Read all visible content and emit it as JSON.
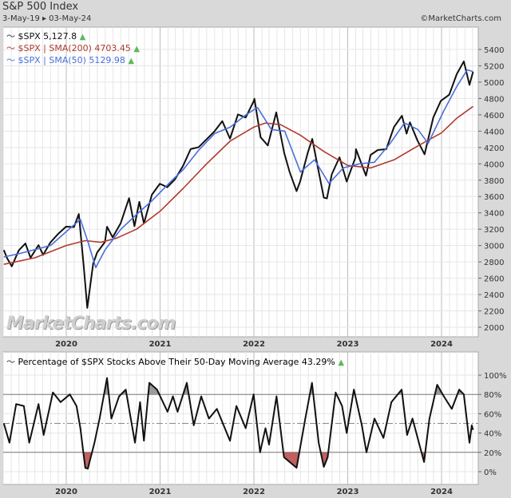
{
  "header": {
    "title": "S&P 500 Index",
    "date_range": "3-May-19 ▸ 03-May-24",
    "credit": "©MarketCharts.com"
  },
  "watermark": "MarketCharts.com",
  "colors": {
    "price": "#111111",
    "sma200": "#b03a2e",
    "sma50": "#4a6fdc",
    "up_arrow": "#5cb85c",
    "overbought_fill": "#9a9a9a",
    "oversold_fill": "#c06060"
  },
  "chart_data": [
    {
      "type": "line",
      "title": "",
      "legend": [
        {
          "label": "$SPX 5,127.8",
          "color": "#111111"
        },
        {
          "label": "$SPX | SMA(200) 4703.45",
          "color": "#b03a2e"
        },
        {
          "label": "$SPX | SMA(50) 5129.98",
          "color": "#4a6fdc"
        }
      ],
      "legend_position": "top-left",
      "x_ticks": [
        "2020",
        "2021",
        "2022",
        "2023",
        "2024"
      ],
      "y_ticks": [
        "2000",
        "2200",
        "2400",
        "2600",
        "2800",
        "3000",
        "3200",
        "3400",
        "3600",
        "3800",
        "4000",
        "4200",
        "4400",
        "4600",
        "4800",
        "5000",
        "5200",
        "5400"
      ],
      "ylim": [
        2000,
        5400
      ],
      "grid": true,
      "series": [
        {
          "name": "$SPX",
          "points": [
            [
              "2019-05-03",
              2945
            ],
            [
              "2019-05-15",
              2850
            ],
            [
              "2019-06-03",
              2745
            ],
            [
              "2019-06-30",
              2940
            ],
            [
              "2019-07-26",
              3025
            ],
            [
              "2019-08-15",
              2850
            ],
            [
              "2019-09-15",
              3005
            ],
            [
              "2019-10-03",
              2885
            ],
            [
              "2019-10-31",
              3037
            ],
            [
              "2019-11-30",
              3141
            ],
            [
              "2019-12-31",
              3231
            ],
            [
              "2020-01-31",
              3226
            ],
            [
              "2020-02-19",
              3386
            ],
            [
              "2020-03-09",
              2750
            ],
            [
              "2020-03-23",
              2237
            ],
            [
              "2020-04-15",
              2780
            ],
            [
              "2020-04-30",
              2912
            ],
            [
              "2020-05-31",
              3044
            ],
            [
              "2020-06-08",
              3230
            ],
            [
              "2020-06-30",
              3100
            ],
            [
              "2020-07-31",
              3271
            ],
            [
              "2020-09-02",
              3580
            ],
            [
              "2020-09-23",
              3237
            ],
            [
              "2020-10-12",
              3535
            ],
            [
              "2020-10-30",
              3270
            ],
            [
              "2020-11-30",
              3622
            ],
            [
              "2020-12-31",
              3756
            ],
            [
              "2021-01-29",
              3714
            ],
            [
              "2021-02-28",
              3811
            ],
            [
              "2021-03-31",
              3973
            ],
            [
              "2021-04-30",
              4181
            ],
            [
              "2021-05-31",
              4204
            ],
            [
              "2021-06-30",
              4298
            ],
            [
              "2021-07-31",
              4395
            ],
            [
              "2021-08-31",
              4523
            ],
            [
              "2021-09-30",
              4308
            ],
            [
              "2021-10-31",
              4605
            ],
            [
              "2021-11-30",
              4567
            ],
            [
              "2021-12-31",
              4766
            ],
            [
              "2022-01-03",
              4796
            ],
            [
              "2022-01-27",
              4326
            ],
            [
              "2022-02-24",
              4225
            ],
            [
              "2022-03-29",
              4630
            ],
            [
              "2022-04-29",
              4132
            ],
            [
              "2022-05-20",
              3900
            ],
            [
              "2022-06-16",
              3666
            ],
            [
              "2022-06-30",
              3785
            ],
            [
              "2022-07-29",
              4130
            ],
            [
              "2022-08-16",
              4305
            ],
            [
              "2022-09-30",
              3586
            ],
            [
              "2022-10-12",
              3577
            ],
            [
              "2022-10-31",
              3872
            ],
            [
              "2022-11-30",
              4080
            ],
            [
              "2022-12-28",
              3783
            ],
            [
              "2023-01-31",
              4077
            ],
            [
              "2023-02-02",
              4180
            ],
            [
              "2023-03-13",
              3855
            ],
            [
              "2023-03-31",
              4109
            ],
            [
              "2023-04-28",
              4169
            ],
            [
              "2023-05-31",
              4180
            ],
            [
              "2023-06-30",
              4450
            ],
            [
              "2023-07-31",
              4589
            ],
            [
              "2023-08-18",
              4370
            ],
            [
              "2023-08-31",
              4508
            ],
            [
              "2023-09-29",
              4288
            ],
            [
              "2023-10-27",
              4117
            ],
            [
              "2023-11-30",
              4568
            ],
            [
              "2023-12-29",
              4770
            ],
            [
              "2024-01-31",
              4846
            ],
            [
              "2024-02-29",
              5096
            ],
            [
              "2024-03-28",
              5254
            ],
            [
              "2024-04-19",
              4967
            ],
            [
              "2024-05-03",
              5128
            ]
          ]
        },
        {
          "name": "$SPX | SMA(200)",
          "points": [
            [
              "2019-05-03",
              2770
            ],
            [
              "2019-09-01",
              2850
            ],
            [
              "2020-01-01",
              3000
            ],
            [
              "2020-03-15",
              3060
            ],
            [
              "2020-05-15",
              3040
            ],
            [
              "2020-07-15",
              3090
            ],
            [
              "2020-10-01",
              3200
            ],
            [
              "2021-01-01",
              3420
            ],
            [
              "2021-04-01",
              3700
            ],
            [
              "2021-07-01",
              4000
            ],
            [
              "2021-10-01",
              4280
            ],
            [
              "2022-01-01",
              4450
            ],
            [
              "2022-02-15",
              4500
            ],
            [
              "2022-04-15",
              4480
            ],
            [
              "2022-07-01",
              4350
            ],
            [
              "2022-10-01",
              4150
            ],
            [
              "2023-01-01",
              3980
            ],
            [
              "2023-04-01",
              3950
            ],
            [
              "2023-07-01",
              4050
            ],
            [
              "2023-10-01",
              4220
            ],
            [
              "2024-01-01",
              4380
            ],
            [
              "2024-03-01",
              4560
            ],
            [
              "2024-05-03",
              4703.45
            ]
          ]
        },
        {
          "name": "$SPX | SMA(50)",
          "points": [
            [
              "2019-05-03",
              2860
            ],
            [
              "2019-07-01",
              2900
            ],
            [
              "2019-09-01",
              2950
            ],
            [
              "2019-11-01",
              3000
            ],
            [
              "2020-01-01",
              3170
            ],
            [
              "2020-02-25",
              3320
            ],
            [
              "2020-03-25",
              3050
            ],
            [
              "2020-04-25",
              2730
            ],
            [
              "2020-06-01",
              2950
            ],
            [
              "2020-08-01",
              3200
            ],
            [
              "2020-10-01",
              3380
            ],
            [
              "2020-12-01",
              3550
            ],
            [
              "2021-02-01",
              3750
            ],
            [
              "2021-04-01",
              3930
            ],
            [
              "2021-06-01",
              4170
            ],
            [
              "2021-08-01",
              4370
            ],
            [
              "2021-10-01",
              4450
            ],
            [
              "2021-12-01",
              4600
            ],
            [
              "2022-01-15",
              4690
            ],
            [
              "2022-03-10",
              4420
            ],
            [
              "2022-05-01",
              4400
            ],
            [
              "2022-07-01",
              3900
            ],
            [
              "2022-08-25",
              4050
            ],
            [
              "2022-10-20",
              3760
            ],
            [
              "2022-12-15",
              3950
            ],
            [
              "2023-02-15",
              4000
            ],
            [
              "2023-04-15",
              4020
            ],
            [
              "2023-06-15",
              4250
            ],
            [
              "2023-08-10",
              4500
            ],
            [
              "2023-10-01",
              4420
            ],
            [
              "2023-11-10",
              4250
            ],
            [
              "2024-01-10",
              4650
            ],
            [
              "2024-03-01",
              4950
            ],
            [
              "2024-04-10",
              5150
            ],
            [
              "2024-05-03",
              5129.98
            ]
          ]
        }
      ]
    },
    {
      "type": "line",
      "legend": [
        {
          "label": "Percentage of $SPX Stocks Above Their 50-Day Moving Average 43.29%",
          "color": "#111111"
        }
      ],
      "legend_position": "top-left",
      "x_ticks": [
        "2020",
        "2021",
        "2022",
        "2023",
        "2024"
      ],
      "y_ticks": [
        "0%",
        "20%",
        "40%",
        "60%",
        "80%",
        "100%"
      ],
      "ylim": [
        0,
        100
      ],
      "reference_lines": [
        20,
        50,
        80
      ],
      "grid": true,
      "series": [
        {
          "name": "Percentage of $SPX Stocks Above Their 50-Day Moving Average",
          "points": [
            [
              "2019-05-03",
              50
            ],
            [
              "2019-05-25",
              30
            ],
            [
              "2019-06-20",
              70
            ],
            [
              "2019-07-20",
              68
            ],
            [
              "2019-08-10",
              30
            ],
            [
              "2019-09-15",
              70
            ],
            [
              "2019-10-05",
              38
            ],
            [
              "2019-11-10",
              82
            ],
            [
              "2019-12-10",
              72
            ],
            [
              "2020-01-15",
              80
            ],
            [
              "2020-02-10",
              68
            ],
            [
              "2020-02-25",
              45
            ],
            [
              "2020-03-15",
              4
            ],
            [
              "2020-03-25",
              3
            ],
            [
              "2020-04-20",
              30
            ],
            [
              "2020-05-10",
              55
            ],
            [
              "2020-06-08",
              97
            ],
            [
              "2020-06-25",
              55
            ],
            [
              "2020-07-25",
              78
            ],
            [
              "2020-08-20",
              85
            ],
            [
              "2020-09-25",
              30
            ],
            [
              "2020-10-15",
              72
            ],
            [
              "2020-10-30",
              32
            ],
            [
              "2020-11-20",
              92
            ],
            [
              "2020-12-20",
              85
            ],
            [
              "2021-01-30",
              62
            ],
            [
              "2021-02-20",
              78
            ],
            [
              "2021-03-10",
              62
            ],
            [
              "2021-04-15",
              92
            ],
            [
              "2021-05-12",
              48
            ],
            [
              "2021-06-10",
              78
            ],
            [
              "2021-07-10",
              55
            ],
            [
              "2021-08-10",
              65
            ],
            [
              "2021-09-30",
              32
            ],
            [
              "2021-10-25",
              68
            ],
            [
              "2021-11-30",
              45
            ],
            [
              "2021-12-31",
              80
            ],
            [
              "2022-01-25",
              20
            ],
            [
              "2022-02-15",
              45
            ],
            [
              "2022-03-01",
              28
            ],
            [
              "2022-03-30",
              78
            ],
            [
              "2022-04-28",
              15
            ],
            [
              "2022-05-20",
              10
            ],
            [
              "2022-06-16",
              4
            ],
            [
              "2022-07-20",
              55
            ],
            [
              "2022-08-15",
              92
            ],
            [
              "2022-09-10",
              30
            ],
            [
              "2022-09-30",
              5
            ],
            [
              "2022-10-15",
              15
            ],
            [
              "2022-11-15",
              82
            ],
            [
              "2022-12-10",
              68
            ],
            [
              "2022-12-28",
              40
            ],
            [
              "2023-01-25",
              85
            ],
            [
              "2023-02-25",
              48
            ],
            [
              "2023-03-15",
              20
            ],
            [
              "2023-04-15",
              55
            ],
            [
              "2023-05-20",
              35
            ],
            [
              "2023-06-20",
              72
            ],
            [
              "2023-07-30",
              85
            ],
            [
              "2023-08-20",
              38
            ],
            [
              "2023-09-10",
              55
            ],
            [
              "2023-10-25",
              10
            ],
            [
              "2023-11-15",
              55
            ],
            [
              "2023-12-15",
              90
            ],
            [
              "2024-01-10",
              78
            ],
            [
              "2024-02-10",
              65
            ],
            [
              "2024-03-10",
              85
            ],
            [
              "2024-03-28",
              80
            ],
            [
              "2024-04-19",
              30
            ],
            [
              "2024-04-28",
              48
            ],
            [
              "2024-05-03",
              43.29
            ]
          ]
        }
      ]
    }
  ]
}
